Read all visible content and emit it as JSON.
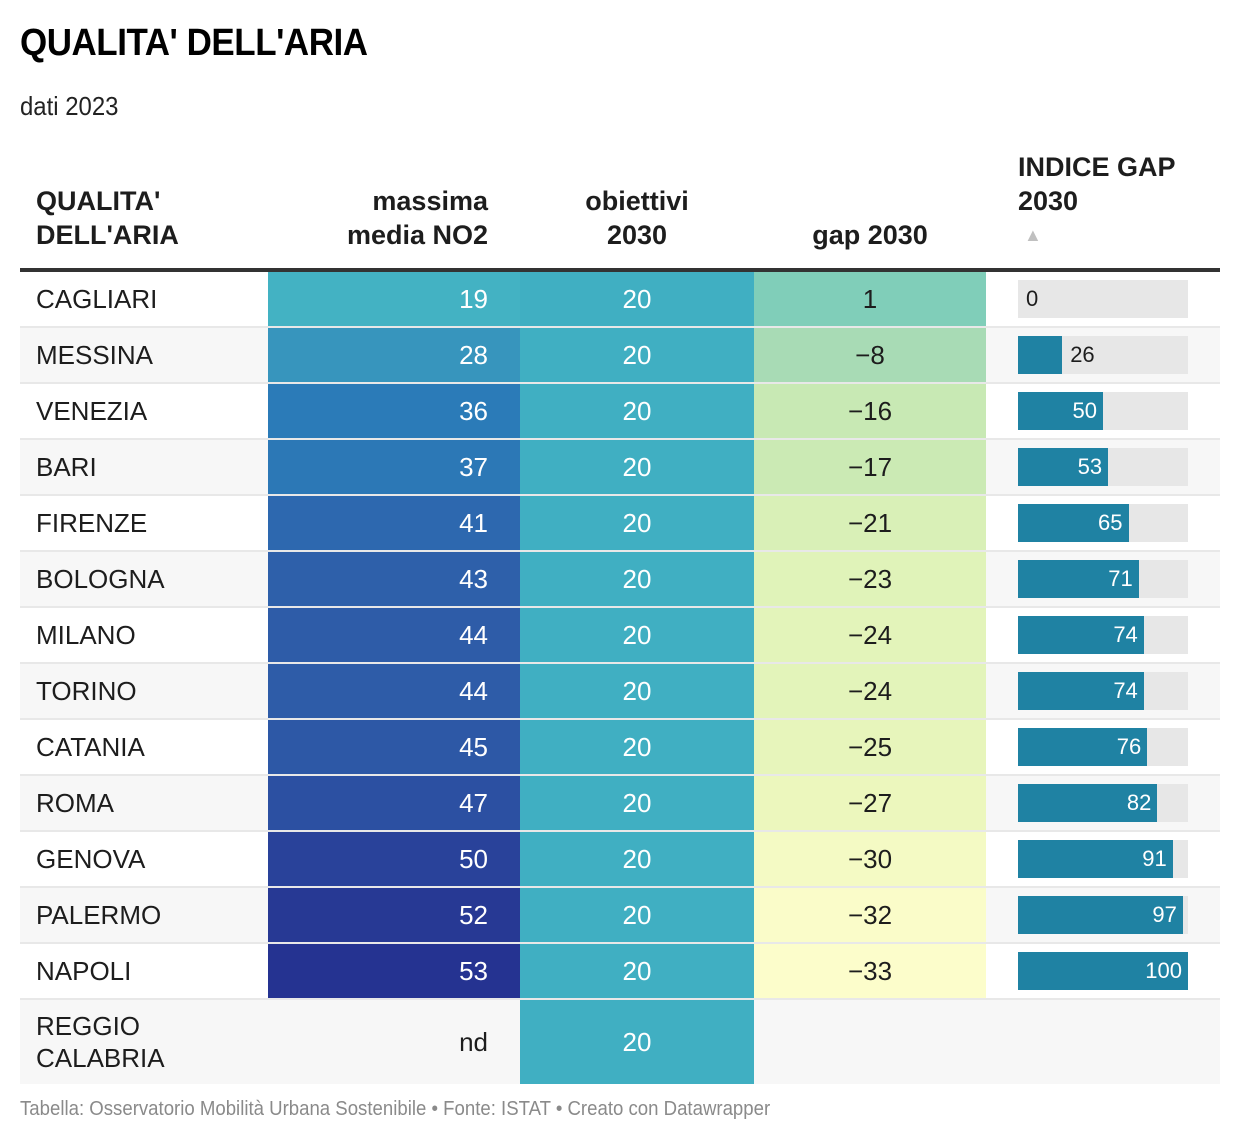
{
  "header": {
    "title": "QUALITA' DELL'ARIA",
    "subtitle": "dati 2023"
  },
  "columns": {
    "city": [
      "QUALITA'",
      "DELL'ARIA"
    ],
    "no2": [
      "massima",
      "media NO2"
    ],
    "obj": [
      "obiettivi",
      "2030"
    ],
    "gap": [
      "",
      "gap 2030"
    ],
    "idx": [
      "INDICE GAP",
      "2030"
    ],
    "sort_indicator": "▲"
  },
  "colors": {
    "index_bar": "#1f82a3",
    "index_bar_bg": "#e7e7e7",
    "objective": "#40afc2"
  },
  "chart_data": {
    "type": "table",
    "title": "QUALITA' DELL'ARIA",
    "subtitle": "dati 2023",
    "columns": [
      "QUALITA' DELL'ARIA",
      "massima media NO2",
      "obiettivi 2030",
      "gap 2030",
      "INDICE GAP 2030"
    ],
    "sorted_by": "INDICE GAP 2030 ascending",
    "index_range": [
      0,
      100
    ],
    "rows": [
      {
        "city": "CAGLIARI",
        "no2": "19",
        "obj": "20",
        "gap": "1",
        "idx": 0,
        "no2_color": "#43b2c3",
        "gap_color": "#80ceb9"
      },
      {
        "city": "MESSINA",
        "no2": "28",
        "obj": "20",
        "gap": "−8",
        "idx": 26,
        "no2_color": "#3795bd",
        "gap_color": "#a8dbb5"
      },
      {
        "city": "VENEZIA",
        "no2": "36",
        "obj": "20",
        "gap": "−16",
        "idx": 50,
        "no2_color": "#2b7bb8",
        "gap_color": "#c8e9b4"
      },
      {
        "city": "BARI",
        "no2": "37",
        "obj": "20",
        "gap": "−17",
        "idx": 53,
        "no2_color": "#2c78b6",
        "gap_color": "#cbeab4"
      },
      {
        "city": "FIRENZE",
        "no2": "41",
        "obj": "20",
        "gap": "−21",
        "idx": 65,
        "no2_color": "#2d68af",
        "gap_color": "#d9f0b7"
      },
      {
        "city": "BOLOGNA",
        "no2": "43",
        "obj": "20",
        "gap": "−23",
        "idx": 71,
        "no2_color": "#2e60aa",
        "gap_color": "#e0f3b9"
      },
      {
        "city": "MILANO",
        "no2": "44",
        "obj": "20",
        "gap": "−24",
        "idx": 74,
        "no2_color": "#2e5ca8",
        "gap_color": "#e3f4ba"
      },
      {
        "city": "TORINO",
        "no2": "44",
        "obj": "20",
        "gap": "−24",
        "idx": 74,
        "no2_color": "#2e5ca8",
        "gap_color": "#e3f4ba"
      },
      {
        "city": "CATANIA",
        "no2": "45",
        "obj": "20",
        "gap": "−25",
        "idx": 76,
        "no2_color": "#2d58a6",
        "gap_color": "#e7f5bb"
      },
      {
        "city": "ROMA",
        "no2": "47",
        "obj": "20",
        "gap": "−27",
        "idx": 82,
        "no2_color": "#2c50a2",
        "gap_color": "#ecf7bd"
      },
      {
        "city": "GENOVA",
        "no2": "50",
        "obj": "20",
        "gap": "−30",
        "idx": 91,
        "no2_color": "#29429a",
        "gap_color": "#f4fac4"
      },
      {
        "city": "PALERMO",
        "no2": "52",
        "obj": "20",
        "gap": "−32",
        "idx": 97,
        "no2_color": "#273994",
        "gap_color": "#fafcc9"
      },
      {
        "city": "NAPOLI",
        "no2": "53",
        "obj": "20",
        "gap": "−33",
        "idx": 100,
        "no2_color": "#253391",
        "gap_color": "#fcfdcb"
      },
      {
        "city": "REGGIO\nCALABRIA",
        "no2": "nd",
        "obj": "20",
        "gap": "",
        "idx": null,
        "no2_color": null,
        "gap_color": null
      }
    ]
  },
  "footer": "Tabella: Osservatorio Mobilità Urbana Sostenibile • Fonte: ISTAT • Creato con Datawrapper"
}
